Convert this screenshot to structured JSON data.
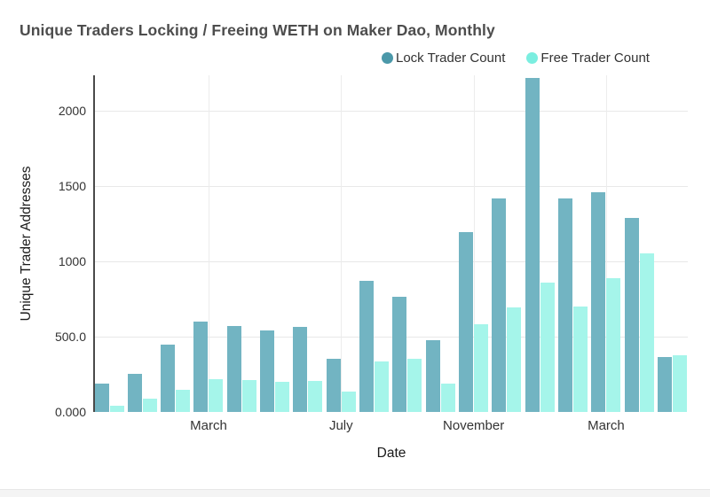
{
  "title": "Unique Traders Locking / Freeing WETH on Maker Dao, Monthly",
  "colors": {
    "lock_bar": "#72b4c2",
    "free_bar": "#a5f5ea",
    "lock_legend": "#4b98a9",
    "free_legend": "#7beee0",
    "gridline": "#e8e8e8",
    "axis_spine": "#4a4a4a",
    "title_text": "#4d4d4d",
    "footer_strip": "#f4f4f4"
  },
  "chart_data": {
    "type": "bar",
    "title": "Unique Traders Locking / Freeing WETH on Maker Dao, Monthly",
    "xlabel": "Date",
    "ylabel": "Unique Trader Addresses",
    "ylim": [
      0,
      2235
    ],
    "grid": "on",
    "legend_position": "top-right",
    "categories": [
      "",
      "",
      "",
      "March",
      "",
      "",
      "",
      "July",
      "",
      "",
      "",
      "November",
      "",
      "",
      "",
      "March",
      "",
      ""
    ],
    "series": [
      {
        "name": "Lock Trader Count",
        "color": "#72b4c2",
        "values": [
          190,
          255,
          450,
          600,
          570,
          540,
          565,
          355,
          870,
          765,
          475,
          1195,
          1420,
          2220,
          1420,
          1460,
          1290,
          365
        ]
      },
      {
        "name": "Free Trader Count",
        "color": "#a5f5ea",
        "values": [
          40,
          90,
          150,
          215,
          210,
          200,
          205,
          135,
          335,
          355,
          190,
          585,
          695,
          860,
          700,
          890,
          1055,
          375
        ]
      }
    ],
    "y_ticks": [
      {
        "value": 0,
        "label": "0.000"
      },
      {
        "value": 500,
        "label": "500.0"
      },
      {
        "value": 1000,
        "label": "1000"
      },
      {
        "value": 1500,
        "label": "1500"
      },
      {
        "value": 2000,
        "label": "2000"
      }
    ],
    "x_ticks": [
      {
        "index": 3,
        "label": "March"
      },
      {
        "index": 7,
        "label": "July"
      },
      {
        "index": 11,
        "label": "November"
      },
      {
        "index": 15,
        "label": "March"
      }
    ]
  }
}
